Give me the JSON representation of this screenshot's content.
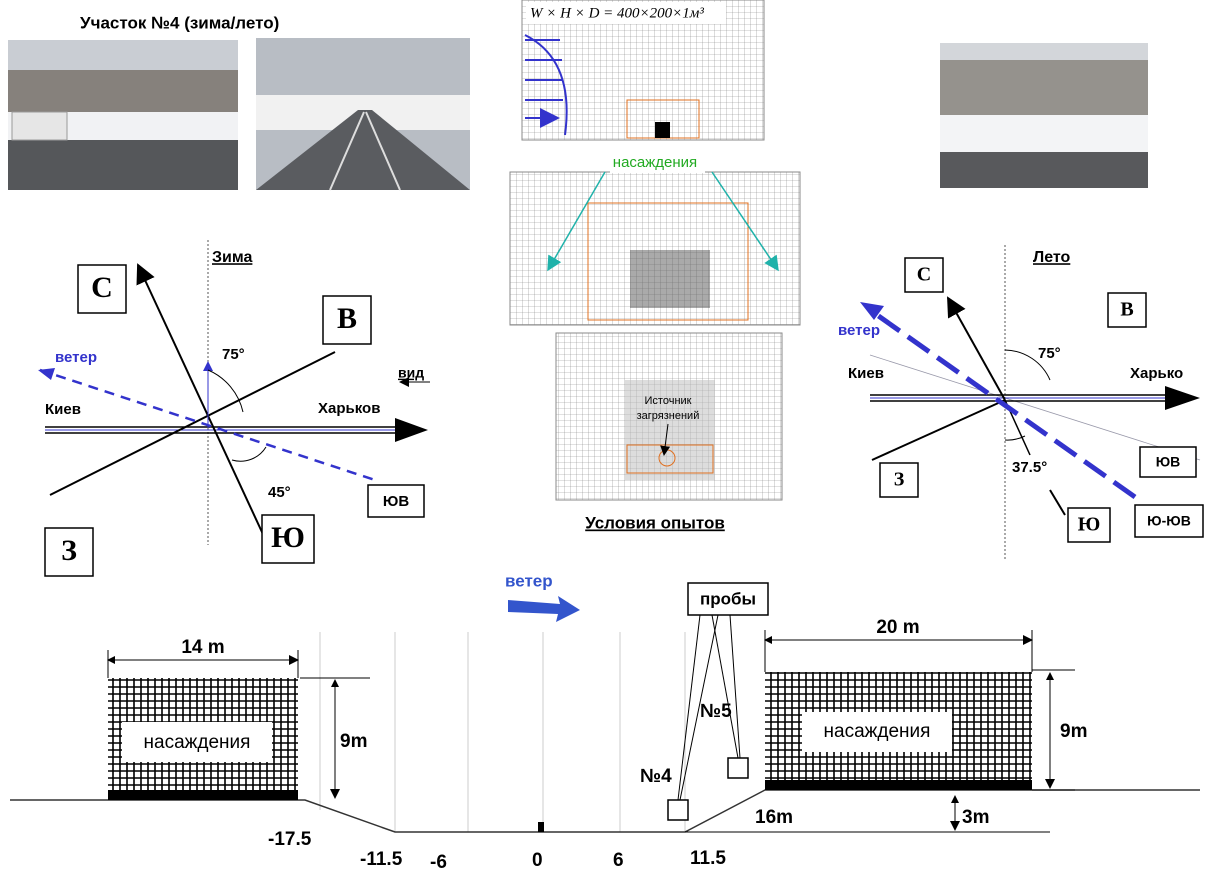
{
  "header": {
    "title": "Участок №4  (зима/лето)"
  },
  "mesh": {
    "formula": "W × H × D = 400×200×1м³",
    "plantings": "насаждения",
    "source_line1": "Источник",
    "source_line2": "загрязнений"
  },
  "conditions": "Условия опытов",
  "winter": {
    "title": "Зима",
    "north": "С",
    "east": "В",
    "west": "З",
    "south": "Ю",
    "wind": "ветер",
    "angle_east": "75°",
    "angle_south": "45°",
    "view": "вид",
    "kiev": "Киев",
    "kharkov": "Харьков",
    "southeast": "ЮВ"
  },
  "summer": {
    "title": "Лето",
    "north": "С",
    "east": "В",
    "west": "З",
    "south": "Ю",
    "wind": "ветер",
    "angle_east": "75°",
    "angle_south": "37.5°",
    "kiev": "Киев",
    "kharkov": "Харько",
    "southeast": "ЮВ",
    "south_southeast": "Ю-ЮВ"
  },
  "section": {
    "wind": "ветер",
    "samples": "пробы",
    "left_width": "14 m",
    "left_height": "9m",
    "left_plantings": "насаждения",
    "right_width": "20 m",
    "right_height": "9m",
    "right_plantings": "насаждения",
    "sample4": "№4",
    "sample5": "№5",
    "distance": "16m",
    "depth": "3m",
    "positions": [
      "-17.5",
      "-11.5",
      "-6",
      "0",
      "6",
      "11.5"
    ]
  }
}
